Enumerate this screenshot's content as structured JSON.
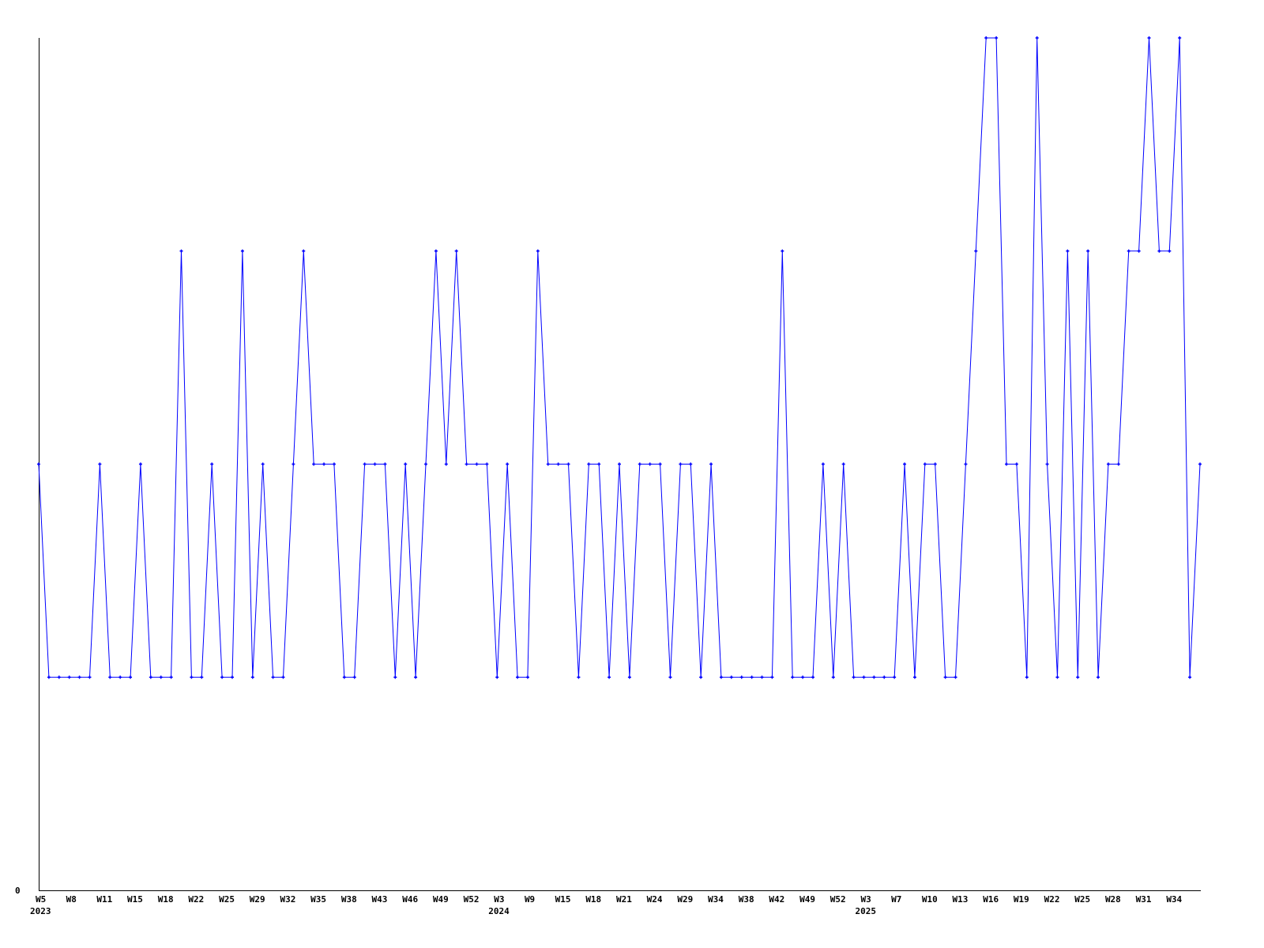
{
  "chart_data": {
    "type": "line",
    "title": "",
    "xlabel": "",
    "ylabel": "",
    "ylim": [
      0,
      4
    ],
    "y_tick_labels": [
      "0"
    ],
    "grid": false,
    "line_color": "#0000ff",
    "axis_color": "#000000",
    "x_tick_labels": [
      "W5",
      "W8",
      "W11",
      "W15",
      "W18",
      "W22",
      "W25",
      "W29",
      "W32",
      "W35",
      "W38",
      "W43",
      "W46",
      "W49",
      "W52",
      "W3",
      "W9",
      "W15",
      "W18",
      "W21",
      "W24",
      "W29",
      "W34",
      "W38",
      "W42",
      "W49",
      "W52",
      "W3",
      "W7",
      "W10",
      "W13",
      "W16",
      "W19",
      "W22",
      "W25",
      "W28",
      "W31",
      "W34"
    ],
    "x_tick_every": 3,
    "year_labels": [
      {
        "label": "2023",
        "index": 0
      },
      {
        "label": "2024",
        "index": 45
      },
      {
        "label": "2025",
        "index": 81
      }
    ],
    "values": [
      2,
      1,
      1,
      1,
      1,
      1,
      2,
      1,
      1,
      1,
      2,
      1,
      1,
      1,
      3,
      1,
      1,
      2,
      1,
      1,
      3,
      1,
      2,
      1,
      1,
      2,
      3,
      2,
      2,
      2,
      1,
      1,
      2,
      2,
      2,
      1,
      2,
      1,
      2,
      3,
      2,
      3,
      2,
      2,
      2,
      1,
      2,
      1,
      1,
      3,
      2,
      2,
      2,
      1,
      2,
      2,
      1,
      2,
      1,
      2,
      2,
      2,
      1,
      2,
      2,
      1,
      2,
      1,
      1,
      1,
      1,
      1,
      1,
      3,
      1,
      1,
      1,
      2,
      1,
      2,
      1,
      1,
      1,
      1,
      1,
      2,
      1,
      2,
      2,
      1,
      1,
      2,
      3,
      4,
      4,
      2,
      2,
      1,
      4,
      2,
      1,
      3,
      1,
      3,
      1,
      2,
      2,
      3,
      3,
      4,
      3,
      3,
      4,
      1,
      2
    ]
  }
}
